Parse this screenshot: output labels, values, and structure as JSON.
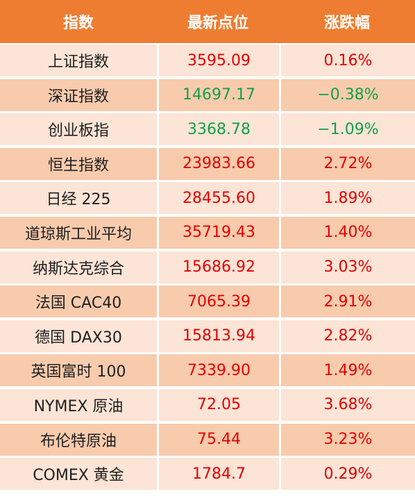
{
  "header": {
    "col_name": "指数",
    "col_price": "最新点位",
    "col_change": "涨跌幅"
  },
  "colors": {
    "header_bg": "#ee7d31",
    "row_light": "#fce4d6",
    "row_dark": "#f8cbad",
    "up": "#e60000",
    "down": "#12a04a"
  },
  "rows": [
    {
      "name": "上证指数",
      "price": "3595.09",
      "change": "0.16%",
      "trend": "up"
    },
    {
      "name": "深证指数",
      "price": "14697.17",
      "change": "−0.38%",
      "trend": "down"
    },
    {
      "name": "创业板指",
      "price": "3368.78",
      "change": "−1.09%",
      "trend": "down"
    },
    {
      "name": "恒生指数",
      "price": "23983.66",
      "change": "2.72%",
      "trend": "up"
    },
    {
      "name": "日经 225",
      "price": "28455.60",
      "change": "1.89%",
      "trend": "up"
    },
    {
      "name": "道琼斯工业平均",
      "price": "35719.43",
      "change": "1.40%",
      "trend": "up"
    },
    {
      "name": "纳斯达克综合",
      "price": "15686.92",
      "change": "3.03%",
      "trend": "up"
    },
    {
      "name": "法国 CAC40",
      "price": "7065.39",
      "change": "2.91%",
      "trend": "up"
    },
    {
      "name": "德国 DAX30",
      "price": "15813.94",
      "change": "2.82%",
      "trend": "up"
    },
    {
      "name": "英国富时 100",
      "price": "7339.90",
      "change": "1.49%",
      "trend": "up"
    },
    {
      "name": "NYMEX 原油",
      "price": "72.05",
      "change": "3.68%",
      "trend": "up"
    },
    {
      "name": "布伦特原油",
      "price": "75.44",
      "change": "3.23%",
      "trend": "up"
    },
    {
      "name": "COMEX 黄金",
      "price": "1784.7",
      "change": "0.29%",
      "trend": "up"
    }
  ]
}
